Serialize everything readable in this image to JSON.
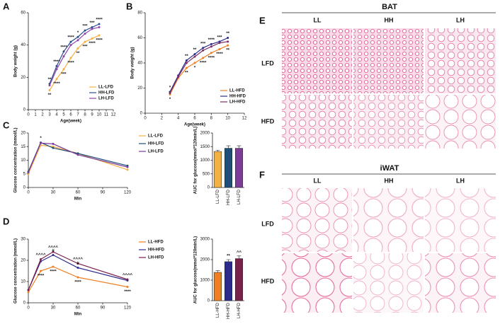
{
  "panels": [
    "A",
    "B",
    "C",
    "D",
    "E",
    "F"
  ],
  "histology": [
    {
      "title": "BAT",
      "columns": [
        "LL",
        "HH",
        "LH"
      ],
      "rows": [
        "LFD",
        "HFD"
      ]
    },
    {
      "title": "iWAT",
      "columns": [
        "LL",
        "HH",
        "LH"
      ],
      "rows": [
        "LFD",
        "HFD"
      ]
    }
  ],
  "chart_data": [
    {
      "type": "line",
      "xlabel": "Age(week)",
      "ylabel": "Body weight (g)",
      "x": [
        3,
        4,
        5,
        6,
        7,
        8,
        9,
        10
      ],
      "xlim": [
        0,
        12
      ],
      "xticks": [
        0,
        1,
        2,
        3,
        4,
        5,
        6,
        7,
        8,
        9,
        10,
        11,
        12
      ],
      "ylim": [
        0,
        60
      ],
      "yticks": [
        0,
        20,
        40,
        60
      ],
      "legend": "lower right",
      "series": [
        {
          "name": "LL-LFD",
          "color": "#f5b041",
          "values": [
            12,
            19,
            25,
            32,
            38,
            42,
            44,
            46
          ]
        },
        {
          "name": "HH-LFD",
          "color": "#2c4f8c",
          "values": [
            16,
            27,
            36,
            42,
            45,
            49,
            51,
            53
          ]
        },
        {
          "name": "LH-LFD",
          "color": "#8e44ad",
          "values": [
            15,
            25,
            33,
            40,
            43,
            47,
            50,
            51
          ]
        }
      ],
      "annotations": [
        {
          "text": "**",
          "series": 1,
          "index": 0
        },
        {
          "text": "****",
          "series": 1,
          "index": 1
        },
        {
          "text": "****",
          "series": 1,
          "index": 2
        },
        {
          "text": "****",
          "series": 1,
          "index": 3
        },
        {
          "text": "*",
          "series": 1,
          "index": 4
        },
        {
          "text": "***",
          "series": 1,
          "index": 5
        },
        {
          "text": "***",
          "series": 1,
          "index": 6
        },
        {
          "text": "****",
          "series": 1,
          "index": 7
        },
        {
          "text": "**",
          "series": 0,
          "index": 0
        },
        {
          "text": "****",
          "series": 0,
          "index": 1
        },
        {
          "text": "***",
          "series": 0,
          "index": 2
        },
        {
          "text": "****",
          "series": 0,
          "index": 3
        },
        {
          "text": "**",
          "series": 0,
          "index": 4
        },
        {
          "text": "***",
          "series": 0,
          "index": 5
        },
        {
          "text": "****",
          "series": 0,
          "index": 6
        },
        {
          "text": "****",
          "series": 0,
          "index": 7
        }
      ]
    },
    {
      "type": "line",
      "xlabel": "Age(week)",
      "ylabel": "Body weight (g)",
      "x": [
        3,
        4,
        5,
        6,
        7,
        8,
        9,
        10
      ],
      "xlim": [
        0,
        12
      ],
      "xticks": [
        0,
        2,
        4,
        6,
        8,
        10,
        12
      ],
      "ylim": [
        0,
        80
      ],
      "yticks": [
        0,
        20,
        40,
        60,
        80
      ],
      "legend": "lower right",
      "series": [
        {
          "name": "LL-HFD",
          "color": "#f07f22",
          "values": [
            15,
            28,
            36,
            40,
            44,
            48,
            51,
            54
          ]
        },
        {
          "name": "HH-HFD",
          "color": "#2b2b8c",
          "values": [
            17,
            30,
            42,
            47,
            52,
            55,
            57,
            60
          ]
        },
        {
          "name": "LH-HFD",
          "color": "#7b2f63",
          "values": [
            16,
            29,
            40,
            45,
            50,
            53,
            56,
            57
          ]
        }
      ],
      "annotations": [
        {
          "text": "*",
          "series": 1,
          "index": 0
        },
        {
          "text": "**",
          "series": 1,
          "index": 2
        },
        {
          "text": "**",
          "series": 1,
          "index": 3
        },
        {
          "text": "***",
          "series": 1,
          "index": 4
        },
        {
          "text": "****",
          "series": 1,
          "index": 5
        },
        {
          "text": "***",
          "series": 1,
          "index": 6
        },
        {
          "text": "**",
          "series": 1,
          "index": 7
        },
        {
          "text": "*",
          "series": 0,
          "index": 0
        },
        {
          "text": "**",
          "series": 0,
          "index": 2
        },
        {
          "text": "*",
          "series": 0,
          "index": 3
        },
        {
          "text": "****",
          "series": 0,
          "index": 4
        },
        {
          "text": "****",
          "series": 0,
          "index": 5
        },
        {
          "text": "****",
          "series": 0,
          "index": 6
        },
        {
          "text": "**",
          "series": 0,
          "index": 7
        }
      ]
    },
    {
      "type": "line",
      "xlabel": "Min",
      "ylabel": "Glucose concentration (mmol/L)",
      "x": [
        0,
        15,
        30,
        60,
        120
      ],
      "xlim": [
        0,
        120
      ],
      "xticks": [
        0,
        30,
        60,
        90,
        120
      ],
      "ylim": [
        0,
        20
      ],
      "yticks": [
        0,
        5,
        10,
        15,
        20
      ],
      "legend": "outside right",
      "series": [
        {
          "name": "LL-LFD",
          "color": "#f5b041",
          "values": [
            5,
            15.5,
            15,
            12.5,
            6.5
          ]
        },
        {
          "name": "HH-LFD",
          "color": "#1f4e79",
          "values": [
            5.8,
            16.5,
            14.5,
            12.5,
            8
          ]
        },
        {
          "name": "LH-LFD",
          "color": "#7d3c98",
          "values": [
            5.5,
            16.3,
            16,
            12,
            7.5
          ]
        }
      ],
      "annotations": [
        {
          "text": "*",
          "series": 1,
          "index": 1
        }
      ]
    },
    {
      "type": "bar",
      "ylabel": "AUC for glucose(mmol*120min/L)",
      "categories": [
        "LL-LFD",
        "HH-LFD",
        "LH-LFD"
      ],
      "values": [
        1320,
        1440,
        1440
      ],
      "errors": [
        50,
        90,
        90
      ],
      "colors": [
        "#f5b041",
        "#1f4e79",
        "#7d3c98"
      ],
      "ylim": [
        0,
        2000
      ],
      "yticks": [
        0,
        500,
        1000,
        1500,
        2000
      ]
    },
    {
      "type": "line",
      "xlabel": "Min",
      "ylabel": "Glucose concentration (mmol/L)",
      "x": [
        0,
        15,
        30,
        60,
        120
      ],
      "xlim": [
        0,
        120
      ],
      "xticks": [
        0,
        30,
        60,
        90,
        120
      ],
      "ylim": [
        0,
        30
      ],
      "yticks": [
        0,
        10,
        20,
        30
      ],
      "legend": "outside right",
      "series": [
        {
          "name": "LL-HFD",
          "color": "#f07f22",
          "values": [
            5,
            15,
            17,
            12,
            7.5
          ]
        },
        {
          "name": "HH-HFD",
          "color": "#2b2b8c",
          "values": [
            6,
            19.5,
            22.5,
            16.5,
            10.5
          ]
        },
        {
          "name": "LH-HFD",
          "color": "#7b1f4b",
          "values": [
            6,
            20.5,
            24,
            18.5,
            11
          ]
        }
      ],
      "annotations": [
        {
          "text": "^^^^",
          "series": 2,
          "index": 1
        },
        {
          "text": "^^^^",
          "series": 2,
          "index": 2
        },
        {
          "text": "^^^^",
          "series": 2,
          "index": 3
        },
        {
          "text": "^^^^",
          "series": 2,
          "index": 4
        },
        {
          "text": "#",
          "series": 1,
          "index": 2
        },
        {
          "text": "#",
          "series": 1,
          "index": 3
        },
        {
          "text": "****",
          "series": 0,
          "index": 1
        },
        {
          "text": "****",
          "series": 0,
          "index": 2
        },
        {
          "text": "****",
          "series": 0,
          "index": 3
        },
        {
          "text": "****",
          "series": 0,
          "index": 4
        }
      ]
    },
    {
      "type": "bar",
      "ylabel": "AUC for glucose(mmol*120min/L)",
      "categories": [
        "LL-HFD",
        "HH-HFD",
        "LH-HFD"
      ],
      "values": [
        1380,
        1900,
        2050
      ],
      "errors": [
        80,
        100,
        130
      ],
      "colors": [
        "#f07f22",
        "#2b2b8c",
        "#7b1f4b"
      ],
      "ylim": [
        0,
        3000
      ],
      "yticks": [
        0,
        1000,
        2000,
        3000
      ],
      "annotations": [
        {
          "text": "**",
          "index": 1
        },
        {
          "text": "^^",
          "index": 2
        }
      ]
    }
  ]
}
